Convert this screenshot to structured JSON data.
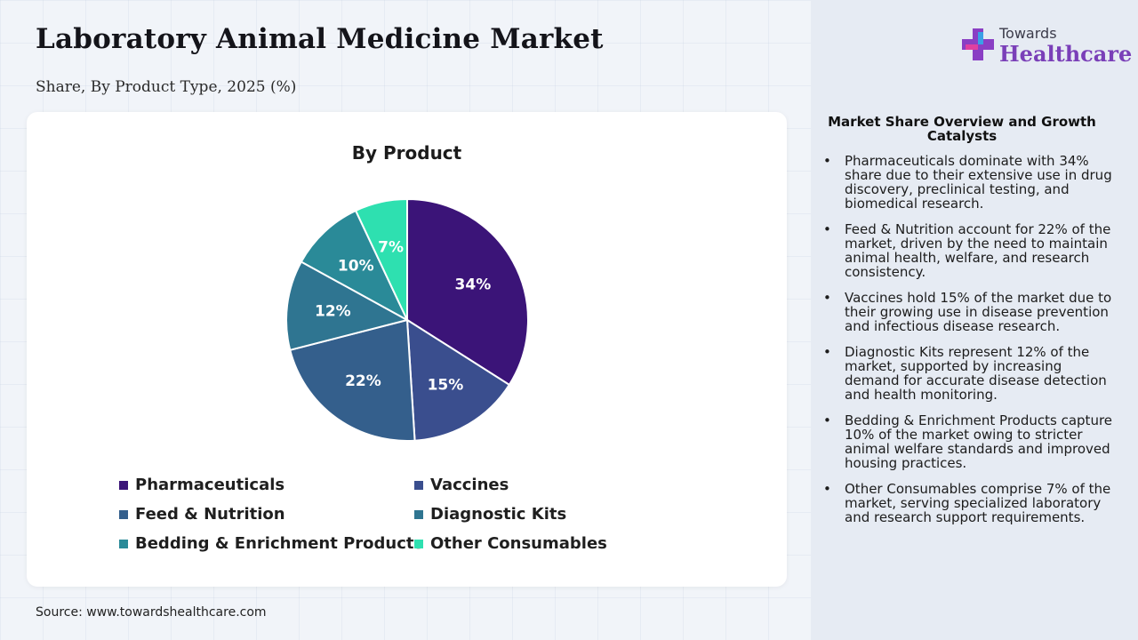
{
  "header": {
    "title": "Laboratory Animal Medicine Market",
    "subtitle": "Share, By Product Type, 2025 (%)"
  },
  "logo": {
    "line1": "Towards",
    "line2": "Healthcare"
  },
  "chart_data": {
    "type": "pie",
    "title": "By Product",
    "categories": [
      "Pharmaceuticals",
      "Vaccines",
      "Feed & Nutrition",
      "Diagnostic Kits",
      "Bedding & Enrichment Products",
      "Other Consumables"
    ],
    "values": [
      34,
      15,
      22,
      12,
      10,
      7
    ],
    "labels": [
      "34%",
      "15%",
      "22%",
      "12%",
      "10%",
      "7%"
    ],
    "colors": [
      "#3b1478",
      "#3a4e8e",
      "#345f8c",
      "#2f7591",
      "#2a8a98",
      "#2ee0b0"
    ],
    "legend": {
      "position": "bottom"
    }
  },
  "panel": {
    "title": "Market Share Overview and Growth Catalysts",
    "bullet_symbol": "•",
    "bullets": [
      "Pharmaceuticals dominate with 34% share due to their extensive use in drug discovery, preclinical testing, and biomedical research.",
      "Feed & Nutrition account for 22% of the market, driven by the need to maintain animal health, welfare, and research consistency.",
      "Vaccines hold 15% of the market due to their growing use in disease prevention and infectious disease research.",
      "Diagnostic Kits represent 12% of the market, supported by increasing demand for accurate disease detection and health monitoring.",
      "Bedding & Enrichment Products capture 10% of the market owing to stricter animal welfare standards and improved housing practices.",
      "Other Consumables comprise 7% of the market, serving specialized laboratory and research support requirements."
    ]
  },
  "footer": {
    "source": "Source: www.towardshealthcare.com"
  }
}
